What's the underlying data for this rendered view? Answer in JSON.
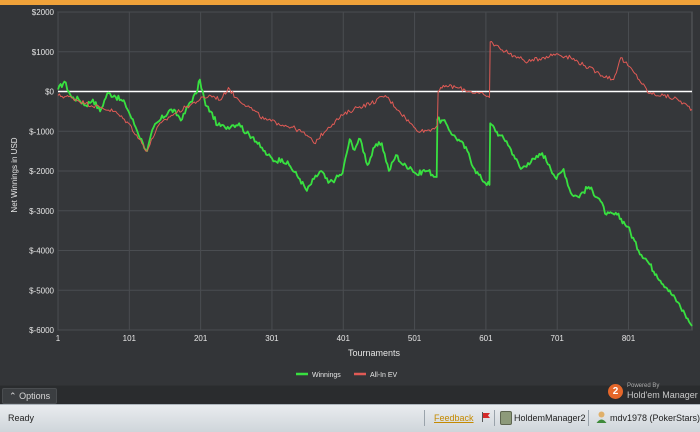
{
  "chart_data": {
    "type": "line",
    "xlabel": "Tournaments",
    "ylabel": "Net Winnings in USD",
    "xlim": [
      1,
      890
    ],
    "ylim": [
      -6000,
      2000
    ],
    "x_ticks": [
      1,
      101,
      201,
      301,
      401,
      501,
      601,
      701,
      801
    ],
    "y_ticks": [
      2000,
      1000,
      0,
      -1000,
      -2000,
      -3000,
      -4000,
      -5000,
      -6000
    ],
    "y_tick_labels": [
      "$2000",
      "$1000",
      "$0",
      "$-1000",
      "$-2000",
      "$-3000",
      "$-4000",
      "$-5000",
      "$-6000"
    ],
    "grid": true,
    "legend_position": "bottom-center",
    "series": [
      {
        "name": "Winnings",
        "color": "#38e040",
        "x": [
          1,
          10,
          20,
          30,
          40,
          50,
          60,
          70,
          80,
          95,
          100,
          110,
          120,
          126,
          135,
          145,
          160,
          175,
          185,
          195,
          200,
          208,
          215,
          225,
          235,
          245,
          255,
          265,
          275,
          285,
          295,
          305,
          315,
          325,
          340,
          350,
          360,
          370,
          380,
          390,
          400,
          410,
          415,
          425,
          435,
          445,
          455,
          465,
          475,
          485,
          495,
          505,
          512,
          520,
          532,
          533,
          545,
          555,
          565,
          575,
          585,
          595,
          606,
          607,
          620,
          630,
          640,
          650,
          660,
          670,
          680,
          690,
          700,
          710,
          720,
          730,
          745,
          760,
          770,
          785,
          800,
          815,
          825,
          840,
          855,
          870,
          880,
          890
        ],
        "y": [
          50,
          250,
          -150,
          -200,
          -350,
          -200,
          -500,
          -50,
          -100,
          -300,
          -500,
          -900,
          -1300,
          -1500,
          -900,
          -700,
          -450,
          -700,
          -300,
          -50,
          300,
          -350,
          -500,
          -850,
          -900,
          -850,
          -800,
          -1050,
          -1150,
          -1400,
          -1600,
          -1750,
          -1700,
          -1850,
          -2200,
          -2500,
          -2200,
          -2000,
          -2300,
          -2200,
          -2050,
          -1200,
          -1450,
          -1200,
          -1850,
          -1400,
          -1300,
          -2000,
          -1600,
          -1850,
          -1900,
          -2100,
          -2000,
          -2000,
          -2150,
          -700,
          -800,
          -1100,
          -1250,
          -1500,
          -1950,
          -2200,
          -2350,
          -800,
          -1100,
          -1250,
          -1600,
          -1950,
          -1800,
          -1700,
          -1550,
          -1850,
          -2200,
          -1950,
          -2550,
          -2650,
          -2400,
          -2700,
          -3100,
          -3100,
          -3400,
          -4000,
          -4200,
          -4600,
          -4950,
          -5300,
          -5600,
          -5900
        ]
      },
      {
        "name": "All-In EV",
        "color": "#e05a55",
        "x": [
          1,
          20,
          40,
          60,
          80,
          100,
          115,
          126,
          140,
          160,
          180,
          200,
          215,
          230,
          240,
          250,
          270,
          290,
          310,
          330,
          350,
          360,
          380,
          400,
          420,
          440,
          460,
          480,
          500,
          510,
          525,
          533,
          534,
          545,
          560,
          580,
          600,
          606,
          607,
          620,
          640,
          660,
          680,
          700,
          720,
          740,
          760,
          780,
          790,
          810,
          830,
          850,
          870,
          890
        ],
        "y": [
          -100,
          -150,
          -300,
          -400,
          -500,
          -800,
          -1200,
          -1500,
          -900,
          -600,
          -400,
          -200,
          -100,
          -200,
          100,
          -150,
          -400,
          -700,
          -800,
          -900,
          -1100,
          -1300,
          -900,
          -600,
          -400,
          -300,
          -100,
          -500,
          -900,
          -1000,
          -950,
          -850,
          0,
          150,
          100,
          0,
          -100,
          -150,
          1250,
          1100,
          900,
          750,
          850,
          950,
          850,
          650,
          450,
          300,
          850,
          450,
          -50,
          -100,
          -200,
          -450
        ]
      }
    ]
  },
  "options": {
    "label": "Options"
  },
  "logo": {
    "badge": "2",
    "small": "Powered By",
    "big": "Hold'em Manager"
  },
  "status": {
    "ready": "Ready",
    "feedback": "Feedback",
    "app": "HoldemManager2",
    "user": "mdv1978 (PokerStars)"
  },
  "colors": {
    "accent": "#f0a23a",
    "winnings": "#38e040",
    "all_in_ev": "#e05a55",
    "zero_line": "#ffffff"
  }
}
